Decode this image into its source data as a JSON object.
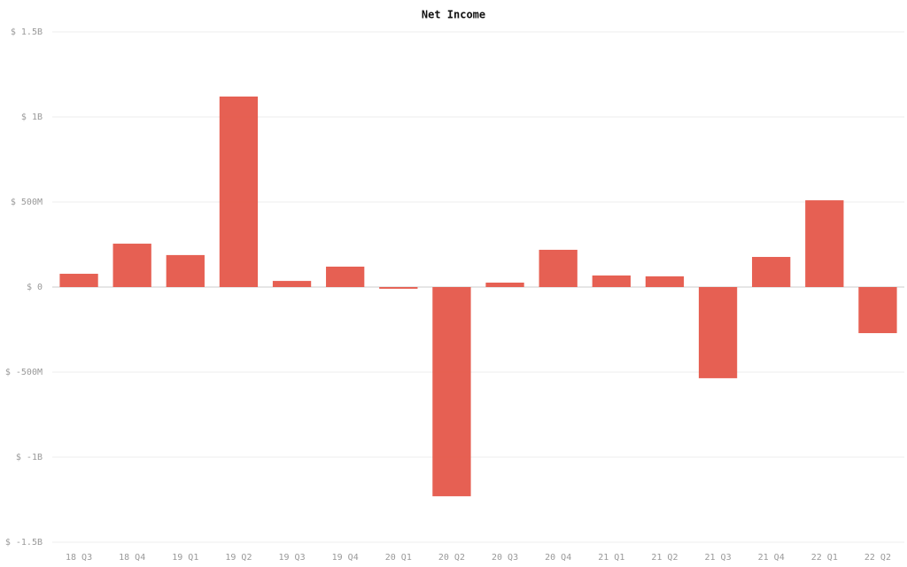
{
  "chart_data": {
    "type": "bar",
    "title": "Net Income",
    "categories": [
      "18 Q3",
      "18 Q4",
      "19 Q1",
      "19 Q2",
      "19 Q3",
      "19 Q4",
      "20 Q1",
      "20 Q2",
      "20 Q3",
      "20 Q4",
      "21 Q1",
      "21 Q2",
      "21 Q3",
      "21 Q4",
      "22 Q1",
      "22 Q2"
    ],
    "values": [
      78000000,
      255000000,
      188000000,
      1120000000,
      36000000,
      120000000,
      -10000000,
      -1230000000,
      26000000,
      219000000,
      68000000,
      63000000,
      -536000000,
      177000000,
      510000000,
      -271000000
    ],
    "color": "#e5574a",
    "ylim": [
      -1500000000,
      1500000000
    ],
    "yticks": [
      {
        "value": -1500000000,
        "label": "$ -1.5B"
      },
      {
        "value": -1000000000,
        "label": "$ -1B"
      },
      {
        "value": -500000000,
        "label": "$ -500M"
      },
      {
        "value": 0,
        "label": "$ 0"
      },
      {
        "value": 500000000,
        "label": "$ 500M"
      },
      {
        "value": 1000000000,
        "label": "$ 1B"
      },
      {
        "value": 1500000000,
        "label": "$ 1.5B"
      }
    ],
    "grid": true
  }
}
